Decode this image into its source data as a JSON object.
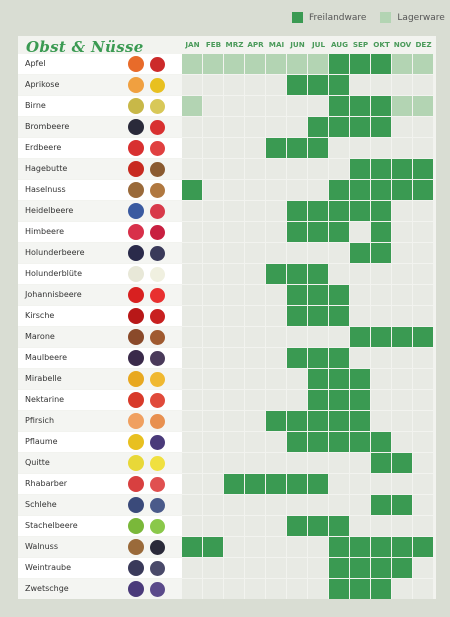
{
  "legend": {
    "freiland_label": "Freilandware",
    "lager_label": "Lagerware",
    "freiland_color": "#3a9a52",
    "lager_color": "#b3d4b3"
  },
  "title": "Obst & Nüsse",
  "months": [
    "JAN",
    "FEB",
    "MRZ",
    "APR",
    "MAI",
    "JUN",
    "JUL",
    "AUG",
    "SEP",
    "OKT",
    "NOV",
    "DEZ"
  ],
  "rows": [
    {
      "name": "Apfel",
      "icon": "apple-icon",
      "colors": [
        "#e86b2a",
        "#cc2a2a"
      ],
      "months": "LLLLLLLFFFLL"
    },
    {
      "name": "Aprikose",
      "icon": "apricot-icon",
      "colors": [
        "#f0a040",
        "#e8c020"
      ],
      "months": "-----FFF----"
    },
    {
      "name": "Birne",
      "icon": "pear-icon",
      "colors": [
        "#c8b848",
        "#d8c858"
      ],
      "months": "L------FFFLL"
    },
    {
      "name": "Brombeere",
      "icon": "blackberry-icon",
      "colors": [
        "#2a2a3a",
        "#d83030"
      ],
      "months": "------FFFF--"
    },
    {
      "name": "Erdbeere",
      "icon": "strawberry-icon",
      "colors": [
        "#d83030",
        "#e04040"
      ],
      "months": "----FFF-----"
    },
    {
      "name": "Hagebutte",
      "icon": "rosehip-icon",
      "colors": [
        "#c82a20",
        "#8a5a30"
      ],
      "months": "--------FFFF"
    },
    {
      "name": "Haselnuss",
      "icon": "hazelnut-icon",
      "colors": [
        "#9a6a3a",
        "#b07840"
      ],
      "months": "F------FFFFF"
    },
    {
      "name": "Heidelbeere",
      "icon": "blueberry-icon",
      "colors": [
        "#3a5aa0",
        "#d83a4a"
      ],
      "months": "-----FFFFF--"
    },
    {
      "name": "Himbeere",
      "icon": "raspberry-icon",
      "colors": [
        "#d8304a",
        "#c82040"
      ],
      "months": "-----FFF-F--"
    },
    {
      "name": "Holunderbeere",
      "icon": "elderberry-icon",
      "colors": [
        "#2a2a4a",
        "#3a3a5a"
      ],
      "months": "--------FF--"
    },
    {
      "name": "Holunderblüte",
      "icon": "elderflower-icon",
      "colors": [
        "#e8e8d8",
        "#f0f0e0"
      ],
      "months": "----FFF-----"
    },
    {
      "name": "Johannisbeere",
      "icon": "currant-icon",
      "colors": [
        "#d82020",
        "#e83030"
      ],
      "months": "-----FFF----"
    },
    {
      "name": "Kirsche",
      "icon": "cherry-icon",
      "colors": [
        "#b81818",
        "#c82020"
      ],
      "months": "-----FFF----"
    },
    {
      "name": "Marone",
      "icon": "chestnut-icon",
      "colors": [
        "#8a4a2a",
        "#a05a30"
      ],
      "months": "--------FFFF"
    },
    {
      "name": "Maulbeere",
      "icon": "mulberry-icon",
      "colors": [
        "#3a2a4a",
        "#4a3a5a"
      ],
      "months": "-----FFF----"
    },
    {
      "name": "Mirabelle",
      "icon": "mirabelle-icon",
      "colors": [
        "#e8a820",
        "#f0b830"
      ],
      "months": "------FFF---"
    },
    {
      "name": "Nektarine",
      "icon": "nectarine-icon",
      "colors": [
        "#d83a2a",
        "#e04a3a"
      ],
      "months": "------FFF---"
    },
    {
      "name": "Pfirsich",
      "icon": "peach-icon",
      "colors": [
        "#f0a060",
        "#e89050"
      ],
      "months": "----FFFFF---"
    },
    {
      "name": "Pflaume",
      "icon": "plum-icon",
      "colors": [
        "#e8c020",
        "#4a3a7a"
      ],
      "months": "-----FFFFF--"
    },
    {
      "name": "Quitte",
      "icon": "quince-icon",
      "colors": [
        "#e8d838",
        "#f0e040"
      ],
      "months": "---------FF-"
    },
    {
      "name": "Rhabarber",
      "icon": "rhubarb-icon",
      "colors": [
        "#d84040",
        "#e05050"
      ],
      "months": "--FFFFF-----"
    },
    {
      "name": "Schlehe",
      "icon": "sloe-icon",
      "colors": [
        "#3a4a7a",
        "#4a5a8a"
      ],
      "months": "---------FF-"
    },
    {
      "name": "Stachelbeere",
      "icon": "gooseberry-icon",
      "colors": [
        "#7ab83a",
        "#8ac84a"
      ],
      "months": "-----FFF----"
    },
    {
      "name": "Walnuss",
      "icon": "walnut-icon",
      "colors": [
        "#9a6a3a",
        "#2a2a3a"
      ],
      "months": "FF-----FFFFF"
    },
    {
      "name": "Weintraube",
      "icon": "grape-icon",
      "colors": [
        "#3a3a5a",
        "#4a4a6a"
      ],
      "months": "-------FFFF-"
    },
    {
      "name": "Zwetschge",
      "icon": "damson-icon",
      "colors": [
        "#4a3a7a",
        "#5a4a8a"
      ],
      "months": "-------FFF--"
    }
  ]
}
